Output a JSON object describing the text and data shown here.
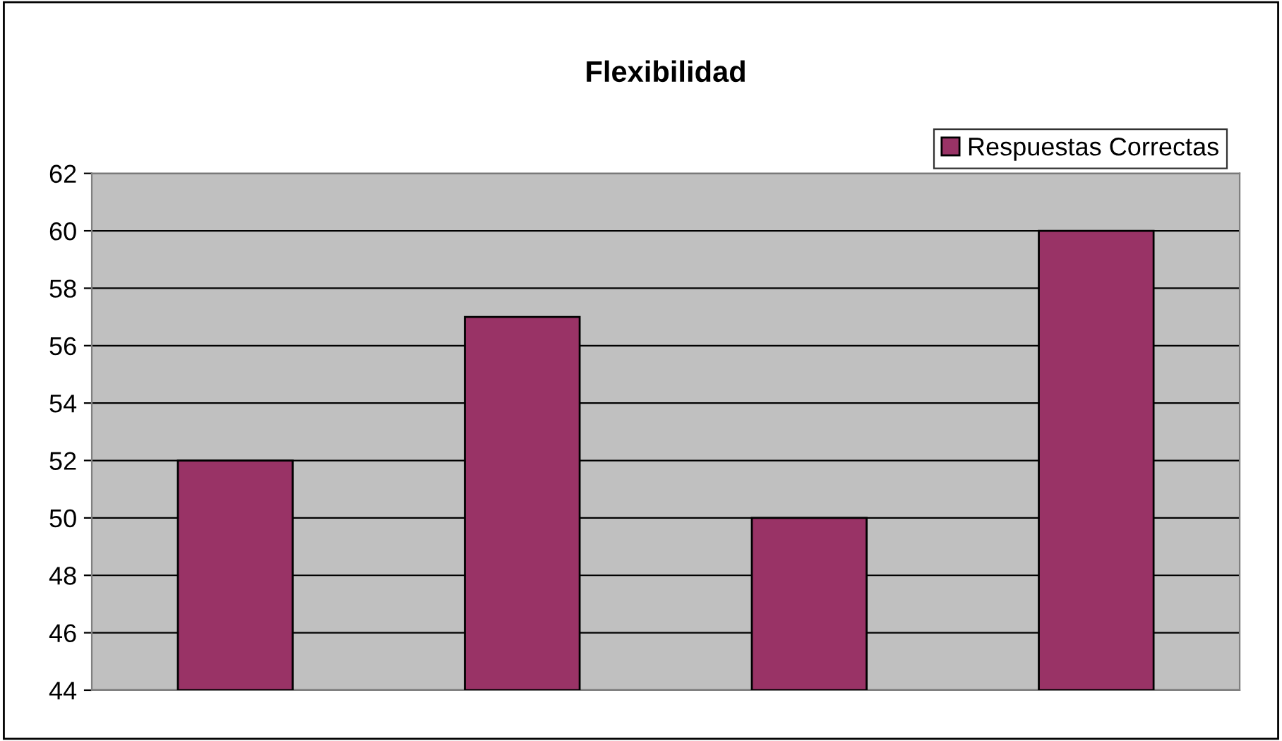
{
  "chart_data": {
    "type": "bar",
    "title": "Flexibilidad",
    "categories": [
      null,
      null,
      null,
      null
    ],
    "series": [
      {
        "name": "Respuestas Correctas",
        "color": "#993366",
        "values": [
          52,
          57,
          50,
          60
        ]
      }
    ],
    "ylim": [
      44,
      62
    ],
    "yticks": [
      44,
      46,
      48,
      50,
      52,
      54,
      56,
      58,
      60,
      62
    ],
    "grid": "y",
    "legend": "top right"
  }
}
